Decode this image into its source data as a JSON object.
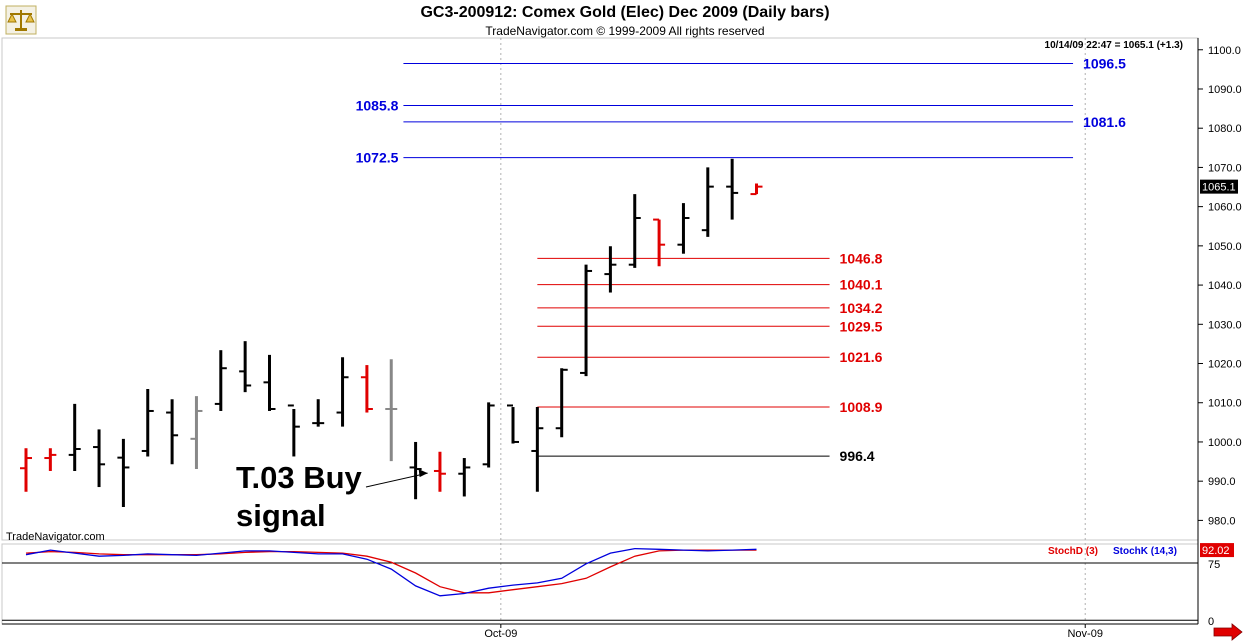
{
  "header": {
    "title": "GC3-200912:  Comex Gold (Elec) Dec 2009  (Daily bars)",
    "subtitle": "TradeNavigator.com © 1999-2009 All rights reserved",
    "quote": "10/14/09 22:47 = 1065.1 (+1.3)",
    "watermark": "TradeNavigator.com",
    "logo_icon": "scale-balance-icon"
  },
  "chart_data": [
    {
      "type": "ohlc",
      "ylim": [
        975,
        1103
      ],
      "yticks": [
        980,
        990,
        1000,
        1010,
        1020,
        1030,
        1040,
        1050,
        1060,
        1070,
        1080,
        1090,
        1100
      ],
      "ytick_labels": [
        "980.0",
        "990.0",
        "1000.0",
        "1010.0",
        "1020.0",
        "1030.0",
        "1040.0",
        "1050.0",
        "1060.0",
        "1070.0",
        "1080.0",
        "1090.0",
        "1100.0"
      ],
      "xticks": [
        {
          "label": "Oct-09",
          "index": 19.5
        },
        {
          "label": "Nov-09",
          "index": 43.5
        }
      ],
      "last_price": {
        "value": 1065.1,
        "label": "1065.1"
      },
      "bars": [
        {
          "o": 993.3,
          "h": 998.4,
          "l": 987.3,
          "c": 995.9,
          "color": "#e00000"
        },
        {
          "o": 995.9,
          "h": 998.4,
          "l": 992.6,
          "c": 996.7,
          "color": "#e00000"
        },
        {
          "o": 996.7,
          "h": 1009.7,
          "l": 992.6,
          "c": 998.2,
          "color": "#000000"
        },
        {
          "o": 998.7,
          "h": 1003.2,
          "l": 988.5,
          "c": 994.3,
          "color": "#000000"
        },
        {
          "o": 996.0,
          "h": 1000.8,
          "l": 983.4,
          "c": 993.5,
          "color": "#000000"
        },
        {
          "o": 997.7,
          "h": 1013.5,
          "l": 996.3,
          "c": 1007.9,
          "color": "#000000"
        },
        {
          "o": 1007.5,
          "h": 1010.9,
          "l": 994.3,
          "c": 1001.7,
          "color": "#000000"
        },
        {
          "o": 1000.8,
          "h": 1011.7,
          "l": 993.1,
          "c": 1007.9,
          "color": "#888888"
        },
        {
          "o": 1009.7,
          "h": 1023.4,
          "l": 1007.9,
          "c": 1018.8,
          "color": "#000000"
        },
        {
          "o": 1018.0,
          "h": 1025.7,
          "l": 1012.7,
          "c": 1014.4,
          "color": "#000000"
        },
        {
          "o": 1015.2,
          "h": 1022.2,
          "l": 1007.9,
          "c": 1008.4,
          "color": "#000000"
        },
        {
          "o": 1009.3,
          "h": 1008.4,
          "l": 996.3,
          "c": 1003.9,
          "color": "#000000"
        },
        {
          "o": 1004.8,
          "h": 1010.9,
          "l": 1003.9,
          "c": 1004.8,
          "color": "#000000"
        },
        {
          "o": 1007.5,
          "h": 1021.6,
          "l": 1003.9,
          "c": 1016.5,
          "color": "#000000"
        },
        {
          "o": 1016.5,
          "h": 1019.6,
          "l": 1007.5,
          "c": 1008.4,
          "color": "#e00000"
        },
        {
          "o": 1008.4,
          "h": 1021.1,
          "l": 995.1,
          "c": 1008.4,
          "color": "#888888"
        },
        {
          "o": 993.5,
          "h": 1000.0,
          "l": 985.4,
          "c": 993.1,
          "color": "#000000"
        },
        {
          "o": 992.6,
          "h": 997.5,
          "l": 987.3,
          "c": 991.9,
          "color": "#e00000"
        },
        {
          "o": 991.9,
          "h": 995.9,
          "l": 986.1,
          "c": 993.5,
          "color": "#000000"
        },
        {
          "o": 994.3,
          "h": 1010.1,
          "l": 993.5,
          "c": 1009.3,
          "color": "#000000"
        },
        {
          "o": 1009.3,
          "h": 1008.9,
          "l": 999.6,
          "c": 1000.0,
          "color": "#000000"
        },
        {
          "o": 997.7,
          "h": 1008.9,
          "l": 987.3,
          "c": 1003.5,
          "color": "#000000"
        },
        {
          "o": 1003.5,
          "h": 1018.8,
          "l": 1001.2,
          "c": 1018.4,
          "color": "#000000"
        },
        {
          "o": 1017.6,
          "h": 1045.2,
          "l": 1016.8,
          "c": 1043.6,
          "color": "#000000"
        },
        {
          "o": 1042.8,
          "h": 1049.9,
          "l": 1038.1,
          "c": 1045.2,
          "color": "#000000"
        },
        {
          "o": 1045.2,
          "h": 1063.2,
          "l": 1044.4,
          "c": 1057.1,
          "color": "#000000"
        },
        {
          "o": 1056.7,
          "h": 1056.7,
          "l": 1044.8,
          "c": 1050.3,
          "color": "#e00000"
        },
        {
          "o": 1050.3,
          "h": 1060.9,
          "l": 1048.0,
          "c": 1057.1,
          "color": "#000000"
        },
        {
          "o": 1054.0,
          "h": 1070.0,
          "l": 1052.3,
          "c": 1065.1,
          "color": "#000000"
        },
        {
          "o": 1065.1,
          "h": 1072.2,
          "l": 1056.7,
          "c": 1063.5,
          "color": "#000000"
        },
        {
          "o": 1063.2,
          "h": 1065.9,
          "l": 1063.2,
          "c": 1065.1,
          "color": "#e00000"
        }
      ],
      "levels": [
        {
          "value": 1096.5,
          "label": "1096.5",
          "color": "#0000dd",
          "start": 15.5,
          "end": 43.0,
          "label_side": "right"
        },
        {
          "value": 1085.8,
          "label": "1085.8",
          "color": "#0000dd",
          "start": 15.5,
          "end": 43.0,
          "label_side": "left"
        },
        {
          "value": 1081.6,
          "label": "1081.6",
          "color": "#0000dd",
          "start": 15.5,
          "end": 43.0,
          "label_side": "right"
        },
        {
          "value": 1072.5,
          "label": "1072.5",
          "color": "#0000dd",
          "start": 15.5,
          "end": 43.0,
          "label_side": "left"
        },
        {
          "value": 1046.8,
          "label": "1046.8",
          "color": "#e00000",
          "start": 21.0,
          "end": 33.0,
          "label_side": "right"
        },
        {
          "value": 1040.1,
          "label": "1040.1",
          "color": "#e00000",
          "start": 21.0,
          "end": 33.0,
          "label_side": "right"
        },
        {
          "value": 1034.2,
          "label": "1034.2",
          "color": "#e00000",
          "start": 21.0,
          "end": 33.0,
          "label_side": "right"
        },
        {
          "value": 1029.5,
          "label": "1029.5",
          "color": "#e00000",
          "start": 21.0,
          "end": 33.0,
          "label_side": "right"
        },
        {
          "value": 1021.6,
          "label": "1021.6",
          "color": "#e00000",
          "start": 21.0,
          "end": 33.0,
          "label_side": "right"
        },
        {
          "value": 1008.9,
          "label": "1008.9",
          "color": "#e00000",
          "start": 21.0,
          "end": 33.0,
          "label_side": "right"
        },
        {
          "value": 996.4,
          "label": "996.4",
          "color": "#000000",
          "start": 21.0,
          "end": 33.0,
          "label_side": "right"
        }
      ],
      "annotation": {
        "text": "T.03 Buy signal",
        "lines": [
          "T.03 Buy",
          "signal"
        ],
        "x": 16.7,
        "y": 992.3
      }
    },
    {
      "type": "line",
      "ylim": [
        -5,
        100
      ],
      "yticks": [
        0,
        75
      ],
      "ytick_labels": [
        "0",
        "75"
      ],
      "hlines": [
        0,
        75
      ],
      "last_value": {
        "value": 92.02,
        "label": "92.02"
      },
      "series": [
        {
          "name": "StochD (3)",
          "color": "#e00000",
          "values": [
            88,
            90,
            89,
            87,
            86,
            86,
            86,
            86,
            87,
            89,
            90,
            90,
            89,
            88,
            84,
            76,
            62,
            44,
            36,
            36,
            40,
            44,
            48,
            55,
            70,
            84,
            91,
            92,
            92,
            92,
            92
          ]
        },
        {
          "name": "StochK (14,3)",
          "color": "#0000dd",
          "values": [
            86,
            92,
            88,
            84,
            85,
            87,
            86,
            85,
            88,
            91,
            91,
            89,
            87,
            87,
            80,
            67,
            45,
            32,
            35,
            42,
            46,
            49,
            55,
            74,
            88,
            94,
            93,
            92,
            91,
            92,
            93
          ]
        }
      ]
    }
  ]
}
